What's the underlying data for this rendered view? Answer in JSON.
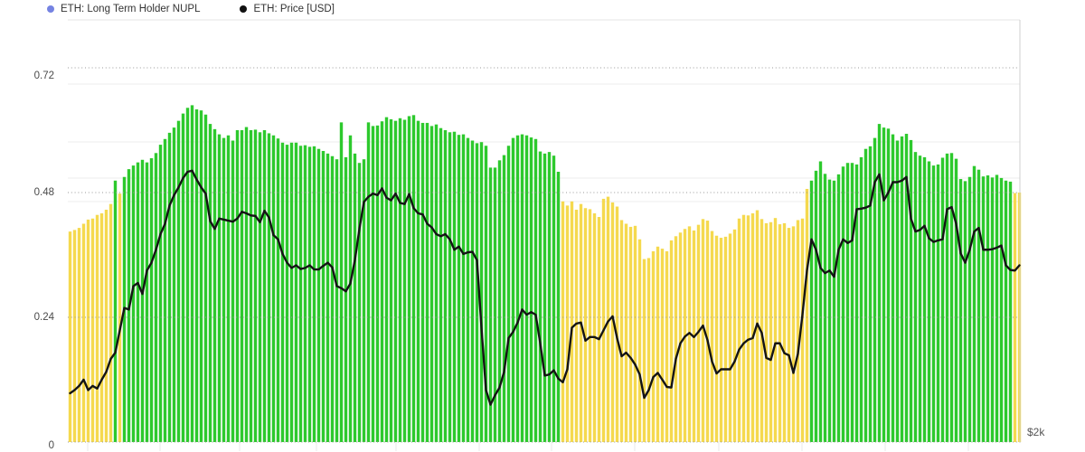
{
  "legend": {
    "items": [
      {
        "label": "ETH: Long Term Holder NUPL",
        "color": "#7583e2"
      },
      {
        "label": "ETH: Price [USD]",
        "color": "#111111"
      }
    ]
  },
  "y_axis": {
    "tick_labels": [
      "0.72",
      "0.48",
      "0.24",
      "0"
    ]
  },
  "right_axis": {
    "visible_label": "$2k"
  },
  "chart_data": {
    "type": "bar",
    "legend_entries": [
      "ETH: Long Term Holder NUPL",
      "ETH: Price [USD]"
    ],
    "legend_position": "top-left",
    "left_axis_ticks": [
      0,
      0.24,
      0.48,
      0.72
    ],
    "left_axis_range": [
      0,
      0.81
    ],
    "right_axis_visible_tick": "$2k",
    "grid": "dotted horizontal lines at left-axis ticks; faint solid price gridlines",
    "bar_color_threshold": 0.5,
    "colors": {
      "bar_below_threshold": "#f5d94e",
      "bar_above_threshold": "#2dc92d",
      "price_line": "#141414",
      "nupl_legend_dot": "#7583e2"
    },
    "series": [
      {
        "name": "ETH: Long Term Holder NUPL",
        "type": "bar",
        "axis": "left",
        "values": [
          0.405,
          0.408,
          0.412,
          0.42,
          0.428,
          0.43,
          0.437,
          0.44,
          0.447,
          0.458,
          0.503,
          0.478,
          0.51,
          0.525,
          0.532,
          0.538,
          0.543,
          0.538,
          0.546,
          0.556,
          0.572,
          0.583,
          0.595,
          0.605,
          0.618,
          0.632,
          0.643,
          0.648,
          0.64,
          0.638,
          0.63,
          0.612,
          0.602,
          0.592,
          0.585,
          0.59,
          0.58,
          0.6,
          0.6,
          0.606,
          0.6,
          0.601,
          0.596,
          0.6,
          0.594,
          0.59,
          0.584,
          0.576,
          0.572,
          0.576,
          0.576,
          0.57,
          0.571,
          0.568,
          0.569,
          0.564,
          0.56,
          0.555,
          0.55,
          0.544,
          0.615,
          0.548,
          0.59,
          0.555,
          0.537,
          0.544,
          0.615,
          0.608,
          0.609,
          0.617,
          0.625,
          0.621,
          0.618,
          0.623,
          0.62,
          0.627,
          0.629,
          0.618,
          0.614,
          0.614,
          0.608,
          0.611,
          0.604,
          0.6,
          0.596,
          0.597,
          0.591,
          0.592,
          0.585,
          0.58,
          0.575,
          0.577,
          0.57,
          0.528,
          0.528,
          0.542,
          0.552,
          0.57,
          0.585,
          0.59,
          0.592,
          0.59,
          0.586,
          0.583,
          0.559,
          0.555,
          0.558,
          0.551,
          0.52,
          0.463,
          0.455,
          0.463,
          0.447,
          0.458,
          0.45,
          0.448,
          0.44,
          0.433,
          0.468,
          0.472,
          0.461,
          0.453,
          0.427,
          0.42,
          0.414,
          0.416,
          0.39,
          0.352,
          0.354,
          0.367,
          0.376,
          0.372,
          0.367,
          0.388,
          0.396,
          0.403,
          0.41,
          0.415,
          0.407,
          0.418,
          0.429,
          0.426,
          0.406,
          0.397,
          0.393,
          0.395,
          0.401,
          0.409,
          0.43,
          0.437,
          0.436,
          0.44,
          0.446,
          0.429,
          0.421,
          0.423,
          0.431,
          0.419,
          0.421,
          0.412,
          0.415,
          0.427,
          0.43,
          0.487,
          0.503,
          0.522,
          0.54,
          0.516,
          0.505,
          0.503,
          0.515,
          0.53,
          0.537,
          0.537,
          0.534,
          0.548,
          0.564,
          0.569,
          0.585,
          0.612,
          0.605,
          0.603,
          0.592,
          0.58,
          0.588,
          0.593,
          0.581,
          0.558,
          0.551,
          0.548,
          0.54,
          0.532,
          0.534,
          0.547,
          0.555,
          0.556,
          0.545,
          0.506,
          0.502,
          0.51,
          0.531,
          0.524,
          0.511,
          0.513,
          0.509,
          0.514,
          0.508,
          0.503,
          0.501,
          0.479,
          0.48
        ]
      },
      {
        "name": "ETH: Price [USD]",
        "type": "line",
        "axis": "right",
        "units": "left-axis-equivalent position (only right-axis tick visible is $2k)",
        "values": [
          0.094,
          0.1,
          0.108,
          0.12,
          0.1,
          0.108,
          0.103,
          0.12,
          0.135,
          0.16,
          0.172,
          0.215,
          0.258,
          0.255,
          0.3,
          0.306,
          0.285,
          0.33,
          0.345,
          0.37,
          0.4,
          0.42,
          0.455,
          0.475,
          0.49,
          0.508,
          0.52,
          0.522,
          0.505,
          0.49,
          0.478,
          0.425,
          0.41,
          0.43,
          0.428,
          0.426,
          0.424,
          0.43,
          0.443,
          0.44,
          0.436,
          0.435,
          0.423,
          0.445,
          0.432,
          0.398,
          0.39,
          0.362,
          0.345,
          0.335,
          0.34,
          0.333,
          0.335,
          0.34,
          0.332,
          0.332,
          0.339,
          0.345,
          0.336,
          0.3,
          0.296,
          0.29,
          0.305,
          0.35,
          0.41,
          0.462,
          0.472,
          0.478,
          0.475,
          0.488,
          0.47,
          0.465,
          0.478,
          0.46,
          0.458,
          0.477,
          0.45,
          0.44,
          0.438,
          0.42,
          0.413,
          0.4,
          0.396,
          0.4,
          0.39,
          0.37,
          0.376,
          0.362,
          0.365,
          0.366,
          0.35,
          0.22,
          0.1,
          0.072,
          0.09,
          0.105,
          0.135,
          0.2,
          0.212,
          0.23,
          0.255,
          0.245,
          0.25,
          0.245,
          0.19,
          0.128,
          0.13,
          0.138,
          0.122,
          0.115,
          0.14,
          0.22,
          0.228,
          0.23,
          0.195,
          0.202,
          0.202,
          0.198,
          0.215,
          0.232,
          0.242,
          0.2,
          0.165,
          0.172,
          0.162,
          0.149,
          0.13,
          0.085,
          0.1,
          0.125,
          0.133,
          0.12,
          0.106,
          0.105,
          0.16,
          0.19,
          0.203,
          0.21,
          0.202,
          0.212,
          0.224,
          0.196,
          0.155,
          0.132,
          0.14,
          0.14,
          0.14,
          0.155,
          0.178,
          0.19,
          0.197,
          0.2,
          0.228,
          0.21,
          0.162,
          0.158,
          0.19,
          0.19,
          0.171,
          0.167,
          0.133,
          0.17,
          0.245,
          0.33,
          0.39,
          0.37,
          0.335,
          0.325,
          0.33,
          0.318,
          0.37,
          0.39,
          0.383,
          0.388,
          0.448,
          0.449,
          0.451,
          0.455,
          0.5,
          0.515,
          0.465,
          0.48,
          0.5,
          0.5,
          0.503,
          0.51,
          0.43,
          0.405,
          0.408,
          0.416,
          0.392,
          0.385,
          0.388,
          0.39,
          0.448,
          0.452,
          0.42,
          0.363,
          0.345,
          0.37,
          0.405,
          0.412,
          0.37,
          0.37,
          0.371,
          0.374,
          0.378,
          0.34,
          0.331,
          0.33,
          0.34
        ]
      }
    ]
  }
}
